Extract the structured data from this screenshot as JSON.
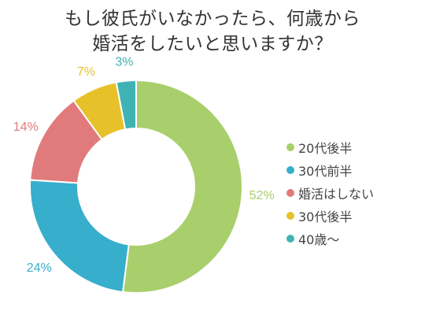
{
  "chart_data": {
    "type": "pie",
    "title_lines": [
      "もし彼氏がいなかったら、何歳から",
      "婚活をしたいと思いますか？"
    ],
    "categories": [
      "20代後半",
      "30代前半",
      "婚活はしない",
      "30代後半",
      "40歳～"
    ],
    "values": [
      52,
      24,
      14,
      7,
      3
    ],
    "value_labels": [
      "52%",
      "24%",
      "14%",
      "7%",
      "3%"
    ],
    "colors": [
      "#a8cf6b",
      "#37aecb",
      "#e17b7b",
      "#e6c12a",
      "#3fb3b3"
    ],
    "label_colors": [
      "#a8cf6b",
      "#37aecb",
      "#e17b7b",
      "#e6c12a",
      "#3fb3b3"
    ],
    "donut": true,
    "legend_position": "right"
  }
}
